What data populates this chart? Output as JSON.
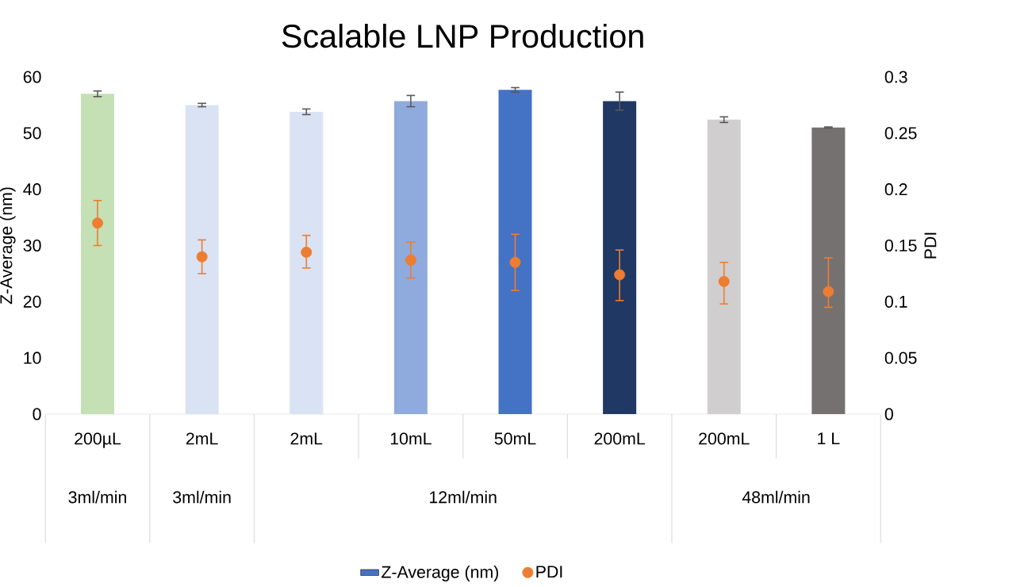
{
  "chart_data": {
    "type": "bar",
    "title": "Scalable LNP Production",
    "ylabel": "Z-Average (nm)",
    "y2label": "PDI",
    "categories": [
      "200µL",
      "2mL",
      "2mL",
      "10mL",
      "50mL",
      "200mL",
      "200mL",
      "1 L"
    ],
    "series": [
      {
        "name": "Z-Average (nm)",
        "color": "#4472c4",
        "colors": [
          "#c5e0b4",
          "#dae3f3",
          "#dae3f3",
          "#8faadc",
          "#4472c4",
          "#203864",
          "#d0cece",
          "#767171"
        ],
        "values": [
          57,
          55,
          53.8,
          55.7,
          57.7,
          55.7,
          52.4,
          51
        ],
        "errors": [
          0.5,
          0.3,
          0.5,
          1.0,
          0.4,
          1.6,
          0.5,
          0.1
        ]
      },
      {
        "name": "PDI",
        "type": "scatter",
        "axis": "y2",
        "color": "#ed7d31",
        "values": [
          0.17,
          0.14,
          0.144,
          0.137,
          0.135,
          0.124,
          0.118,
          0.109
        ],
        "errors": [
          [
            0.15,
            0.19
          ],
          [
            0.125,
            0.155
          ],
          [
            0.13,
            0.159
          ],
          [
            0.121,
            0.153
          ],
          [
            0.11,
            0.16
          ],
          [
            0.101,
            0.146
          ],
          [
            0.098,
            0.135
          ],
          [
            0.095,
            0.139
          ]
        ]
      }
    ],
    "ylim": [
      0,
      60
    ],
    "yticks": [
      0,
      10,
      20,
      30,
      40,
      50,
      60
    ],
    "y2lim": [
      0,
      0.3
    ],
    "y2ticks": [
      0,
      0.05,
      0.1,
      0.15,
      0.2,
      0.25,
      0.3
    ],
    "legend": "bottom",
    "marker": "circle",
    "annotations": [
      "3ml/min",
      "3ml/min",
      "12ml/min",
      "48ml/min"
    ]
  }
}
